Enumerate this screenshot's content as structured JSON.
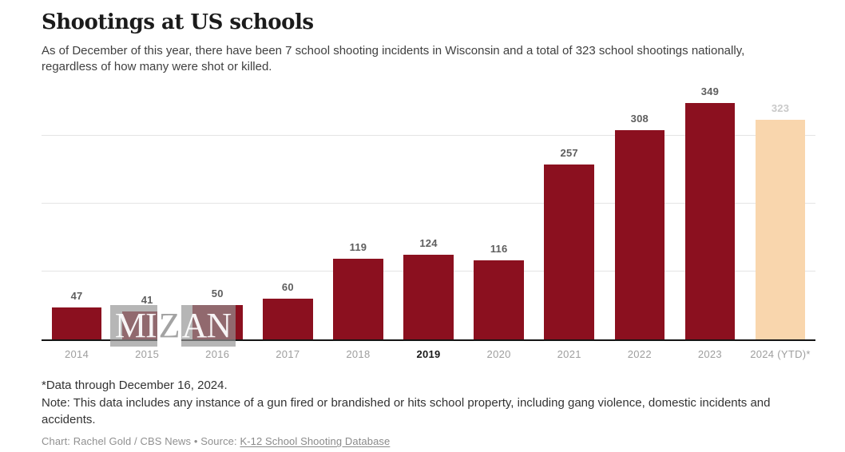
{
  "header": {
    "title": "Shootings at US schools",
    "subtitle": "As of December of this year, there have been 7 school shooting incidents in Wisconsin and a total of 323 school shootings nationally, regardless of how many were shot or killed."
  },
  "chart_data": {
    "type": "bar",
    "title": "Shootings at US schools",
    "categories": [
      "2014",
      "2015",
      "2016",
      "2017",
      "2018",
      "2019",
      "2020",
      "2021",
      "2022",
      "2023",
      "2024 (YTD)*"
    ],
    "values": [
      47,
      41,
      50,
      60,
      119,
      124,
      116,
      257,
      308,
      349,
      323
    ],
    "xlabel": "",
    "ylabel": "",
    "ylim": [
      0,
      360
    ],
    "gridline_values": [
      100,
      200,
      300
    ],
    "grid": "horizontal, unlabeled",
    "legend_position": "none",
    "highlighted_category": "2019",
    "ytd_index": 10,
    "bar_color": "#8b101f",
    "ytd_bar_color": "#f9d6ad",
    "value_label_color": "#5e5e5e",
    "ytd_value_label_color": "#c9c9c9"
  },
  "watermark": {
    "text_left": "MI",
    "text_mid": "Z",
    "text_right": "AN",
    "full_text": "MIZAN"
  },
  "footer": {
    "footnote": "*Data through December 16, 2024.",
    "note": "Note: This data includes any instance of a gun fired or brandished or hits school property, including gang violence, domestic incidents and accidents.",
    "credit_prefix": "Chart: Rachel Gold / CBS News • Source: ",
    "source_link_label": "K-12 School Shooting Database"
  },
  "colors": {
    "bar": "#8b101f",
    "ytd_bar": "#f9d6ad",
    "axis_line": "#141414",
    "gridline": "#e4e4e4",
    "title_text": "#1b1b1b",
    "subtitle_text": "#404040",
    "x_label": "#9e9e9e",
    "x_label_highlight": "#1a1a1a",
    "credit_text": "#909090"
  }
}
